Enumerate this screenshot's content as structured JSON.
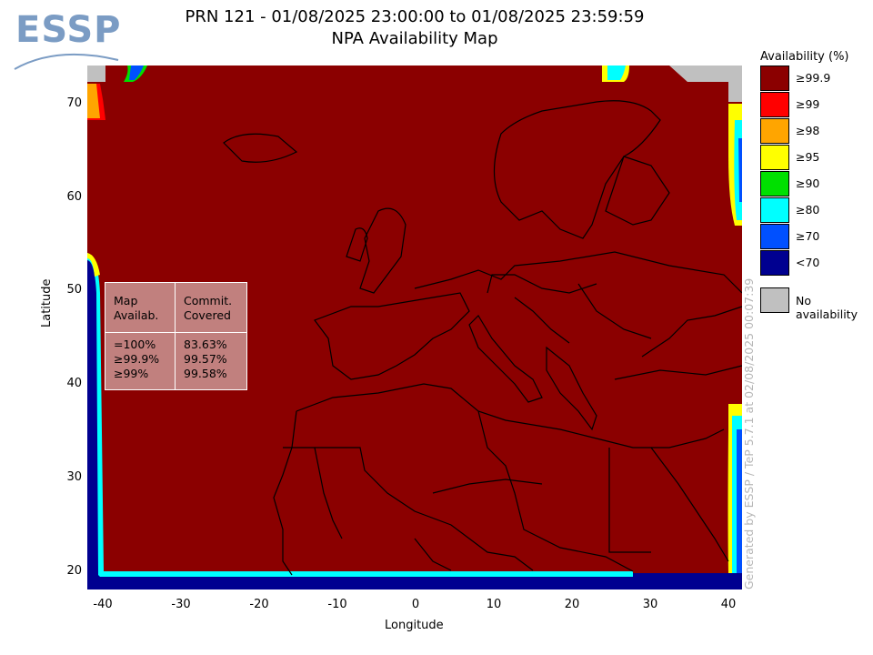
{
  "logo": {
    "text": "ESSP"
  },
  "header": {
    "title_line1": "PRN 121 - 01/08/2025 23:00:00 to 01/08/2025 23:59:59",
    "title_line2": "NPA Availability Map"
  },
  "axes": {
    "xlabel": "Longitude",
    "ylabel": "Latitude",
    "xticks": [
      "-40",
      "-30",
      "-20",
      "-10",
      "0",
      "10",
      "20",
      "30",
      "40"
    ],
    "yticks": [
      "70",
      "60",
      "50",
      "40",
      "30",
      "20"
    ],
    "xlim": [
      -42,
      42
    ],
    "ylim": [
      18,
      74
    ]
  },
  "stats_table": {
    "col1_header": "Map\nAvailab.",
    "col2_header": "Commit.\nCovered",
    "col1_rows": "=100%\n≥99.9%\n≥99%",
    "col2_rows": "83.63%\n99.57%\n99.58%"
  },
  "legend": {
    "title": "Availability (%)",
    "items": [
      {
        "label": "≥99.9",
        "color": "#8b0000"
      },
      {
        "label": "≥99",
        "color": "#ff0000"
      },
      {
        "label": "≥98",
        "color": "#ffa500"
      },
      {
        "label": "≥95",
        "color": "#ffff00"
      },
      {
        "label": "≥90",
        "color": "#00e000"
      },
      {
        "label": "≥80",
        "color": "#00ffff"
      },
      {
        "label": "≥70",
        "color": "#0050ff"
      },
      {
        "label": "<70",
        "color": "#000090"
      }
    ],
    "no_availability": {
      "label": "No availability",
      "color": "#c0c0c0"
    }
  },
  "credit": "Generated by ESSP / TeP 5.7.1 at 02/08/2025 00:07:39"
}
